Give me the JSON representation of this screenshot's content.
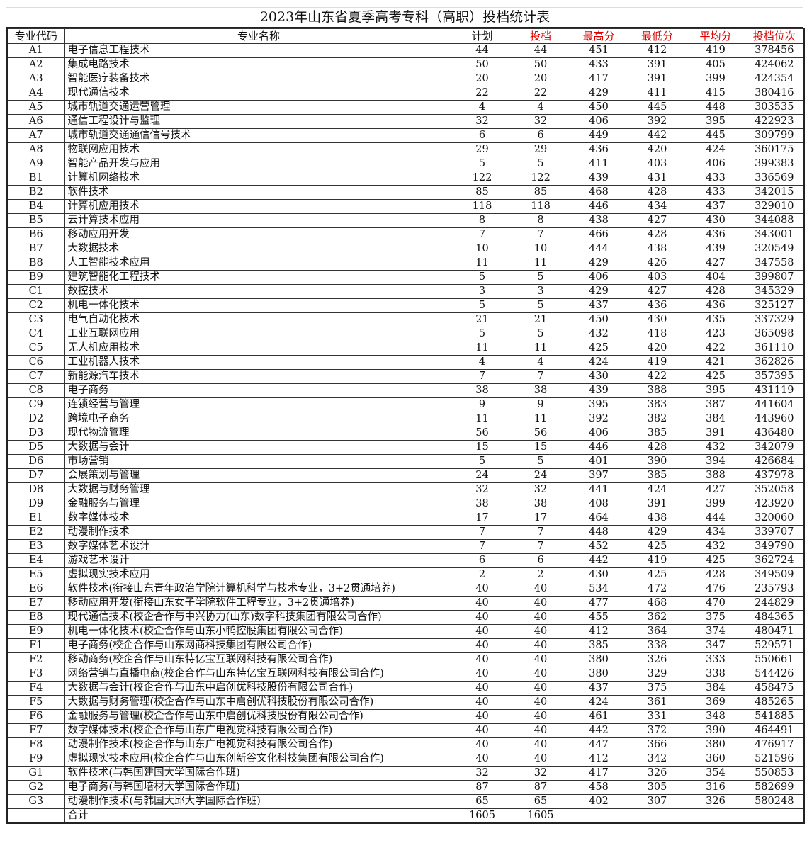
{
  "title": "2023年山东省夏季高考专科（高职）投档统计表",
  "header_color_accent": "#e00000",
  "headers": [
    {
      "label": "专业代码",
      "red": false
    },
    {
      "label": "专业名称",
      "red": false
    },
    {
      "label": "计划",
      "red": false
    },
    {
      "label": "投档",
      "red": true
    },
    {
      "label": "最高分",
      "red": true
    },
    {
      "label": "最低分",
      "red": true
    },
    {
      "label": "平均分",
      "red": true
    },
    {
      "label": "投档位次",
      "red": true
    }
  ],
  "rows": [
    [
      "A1",
      "电子信息工程技术",
      "44",
      "44",
      "451",
      "412",
      "419",
      "378456"
    ],
    [
      "A2",
      "集成电路技术",
      "50",
      "50",
      "433",
      "391",
      "405",
      "424062"
    ],
    [
      "A3",
      "智能医疗装备技术",
      "20",
      "20",
      "417",
      "391",
      "399",
      "424354"
    ],
    [
      "A4",
      "现代通信技术",
      "22",
      "22",
      "429",
      "411",
      "415",
      "380416"
    ],
    [
      "A5",
      "城市轨道交通运营管理",
      "4",
      "4",
      "450",
      "445",
      "448",
      "303535"
    ],
    [
      "A6",
      "通信工程设计与监理",
      "32",
      "32",
      "406",
      "392",
      "395",
      "422923"
    ],
    [
      "A7",
      "城市轨道交通通信信号技术",
      "6",
      "6",
      "449",
      "442",
      "445",
      "309799"
    ],
    [
      "A8",
      "物联网应用技术",
      "29",
      "29",
      "436",
      "420",
      "424",
      "360175"
    ],
    [
      "A9",
      "智能产品开发与应用",
      "5",
      "5",
      "411",
      "403",
      "406",
      "399383"
    ],
    [
      "B1",
      "计算机网络技术",
      "122",
      "122",
      "439",
      "431",
      "433",
      "336569"
    ],
    [
      "B2",
      "软件技术",
      "85",
      "85",
      "468",
      "428",
      "433",
      "342015"
    ],
    [
      "B4",
      "计算机应用技术",
      "118",
      "118",
      "446",
      "434",
      "437",
      "329010"
    ],
    [
      "B5",
      "云计算技术应用",
      "8",
      "8",
      "438",
      "427",
      "430",
      "344088"
    ],
    [
      "B6",
      "移动应用开发",
      "7",
      "7",
      "466",
      "428",
      "436",
      "343001"
    ],
    [
      "B7",
      "大数据技术",
      "10",
      "10",
      "444",
      "438",
      "439",
      "320549"
    ],
    [
      "B8",
      "人工智能技术应用",
      "11",
      "11",
      "429",
      "426",
      "427",
      "347558"
    ],
    [
      "B9",
      "建筑智能化工程技术",
      "5",
      "5",
      "406",
      "403",
      "404",
      "399807"
    ],
    [
      "C1",
      "数控技术",
      "3",
      "3",
      "429",
      "427",
      "428",
      "345329"
    ],
    [
      "C2",
      "机电一体化技术",
      "5",
      "5",
      "437",
      "436",
      "436",
      "325127"
    ],
    [
      "C3",
      "电气自动化技术",
      "21",
      "21",
      "450",
      "430",
      "435",
      "337329"
    ],
    [
      "C4",
      "工业互联网应用",
      "5",
      "5",
      "432",
      "418",
      "423",
      "365098"
    ],
    [
      "C5",
      "无人机应用技术",
      "11",
      "11",
      "425",
      "420",
      "422",
      "361110"
    ],
    [
      "C6",
      "工业机器人技术",
      "4",
      "4",
      "424",
      "419",
      "421",
      "362826"
    ],
    [
      "C7",
      "新能源汽车技术",
      "7",
      "7",
      "430",
      "422",
      "425",
      "357395"
    ],
    [
      "C8",
      "电子商务",
      "38",
      "38",
      "439",
      "388",
      "395",
      "431119"
    ],
    [
      "C9",
      "连锁经营与管理",
      "9",
      "9",
      "395",
      "383",
      "387",
      "441604"
    ],
    [
      "D2",
      "跨境电子商务",
      "11",
      "11",
      "392",
      "382",
      "384",
      "443960"
    ],
    [
      "D3",
      "现代物流管理",
      "56",
      "56",
      "406",
      "385",
      "391",
      "436480"
    ],
    [
      "D5",
      "大数据与会计",
      "15",
      "15",
      "446",
      "428",
      "432",
      "342079"
    ],
    [
      "D6",
      "市场营销",
      "5",
      "5",
      "401",
      "390",
      "394",
      "426684"
    ],
    [
      "D7",
      "会展策划与管理",
      "24",
      "24",
      "397",
      "385",
      "388",
      "437978"
    ],
    [
      "D8",
      "大数据与财务管理",
      "32",
      "32",
      "441",
      "424",
      "427",
      "352058"
    ],
    [
      "D9",
      "金融服务与管理",
      "38",
      "38",
      "408",
      "391",
      "399",
      "423920"
    ],
    [
      "E1",
      "数字媒体技术",
      "17",
      "17",
      "464",
      "438",
      "444",
      "320060"
    ],
    [
      "E2",
      "动漫制作技术",
      "7",
      "7",
      "448",
      "429",
      "434",
      "339707"
    ],
    [
      "E3",
      "数字媒体艺术设计",
      "7",
      "7",
      "452",
      "425",
      "432",
      "349790"
    ],
    [
      "E4",
      "游戏艺术设计",
      "6",
      "6",
      "442",
      "419",
      "425",
      "362724"
    ],
    [
      "E5",
      "虚拟现实技术应用",
      "2",
      "2",
      "430",
      "425",
      "428",
      "349509"
    ],
    [
      "E6",
      "软件技术(衔接山东青年政治学院计算机科学与技术专业，3+2贯通培养)",
      "40",
      "40",
      "534",
      "472",
      "476",
      "235793"
    ],
    [
      "E7",
      "移动应用开发(衔接山东女子学院软件工程专业，3+2贯通培养)",
      "40",
      "40",
      "477",
      "468",
      "470",
      "244829"
    ],
    [
      "E8",
      "现代通信技术(校企合作与中兴协力(山东)数字科技集团有限公司合作)",
      "40",
      "40",
      "455",
      "362",
      "375",
      "484365"
    ],
    [
      "E9",
      "机电一体化技术(校企合作与山东小鸭控股集团有限公司合作)",
      "40",
      "40",
      "412",
      "364",
      "374",
      "480471"
    ],
    [
      "F1",
      "电子商务(校企合作与山东网商科技集团有限公司合作)",
      "40",
      "40",
      "385",
      "338",
      "347",
      "529571"
    ],
    [
      "F2",
      "移动商务(校企合作与山东特亿宝互联网科技有限公司合作)",
      "40",
      "40",
      "380",
      "326",
      "333",
      "550661"
    ],
    [
      "F3",
      "网络营销与直播电商(校企合作与山东特亿宝互联网科技有限公司合作)",
      "40",
      "40",
      "380",
      "329",
      "338",
      "544426"
    ],
    [
      "F4",
      "大数据与会计(校企合作与山东中启创优科技股份有限公司合作)",
      "40",
      "40",
      "437",
      "375",
      "384",
      "458475"
    ],
    [
      "F5",
      "大数据与财务管理(校企合作与山东中启创优科技股份有限公司合作)",
      "40",
      "40",
      "424",
      "361",
      "369",
      "485265"
    ],
    [
      "F6",
      "金融服务与管理(校企合作与山东中启创优科技股份有限公司合作)",
      "40",
      "40",
      "461",
      "331",
      "348",
      "541885"
    ],
    [
      "F7",
      "数字媒体技术(校企合作与山东广电视觉科技有限公司合作)",
      "40",
      "40",
      "442",
      "372",
      "390",
      "464491"
    ],
    [
      "F8",
      "动漫制作技术(校企合作与山东广电视觉科技有限公司合作)",
      "40",
      "40",
      "447",
      "366",
      "380",
      "476917"
    ],
    [
      "F9",
      "虚拟现实技术应用(校企合作与山东创新谷文化科技集团有限公司合作)",
      "40",
      "40",
      "412",
      "342",
      "360",
      "521596"
    ],
    [
      "G1",
      "软件技术(与韩国建国大学国际合作班)",
      "32",
      "32",
      "417",
      "326",
      "354",
      "550853"
    ],
    [
      "G2",
      "电子商务(与韩国培材大学国际合作班)",
      "87",
      "87",
      "458",
      "305",
      "316",
      "582699"
    ],
    [
      "G3",
      "动漫制作技术(与韩国大邱大学国际合作班)",
      "65",
      "65",
      "402",
      "307",
      "326",
      "580248"
    ]
  ],
  "total": {
    "label": "合计",
    "plan": "1605",
    "admitted": "1605"
  }
}
